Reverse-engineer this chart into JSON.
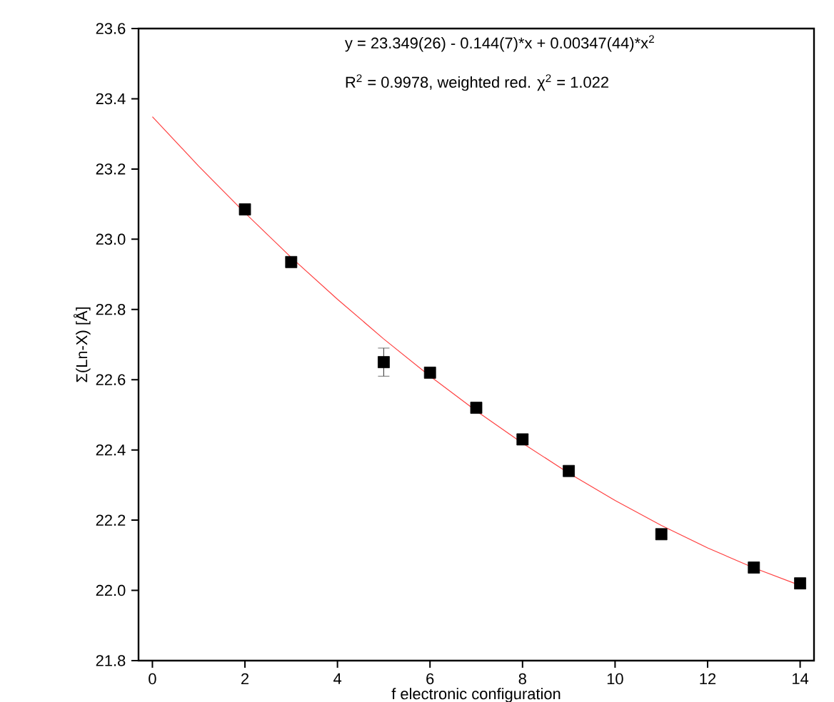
{
  "chart_data": {
    "type": "scatter",
    "xlabel": "f electronic configuration",
    "ylabel": "Σ(Ln-X) [Å]",
    "annotations": [
      "y = 23.349(26) - 0.144(7)*x + 0.00347(44)*x$^{2}$",
      "R$^{2}$ = 0.9978, weighted red. χ$^{2}$ = 1.022"
    ],
    "xlim": [
      -0.3,
      14.3
    ],
    "ylim": [
      21.8,
      23.6
    ],
    "xticks": [
      0,
      2,
      4,
      6,
      8,
      10,
      12,
      14
    ],
    "yticks": [
      {
        "value": 21.8,
        "label": "21.8"
      },
      {
        "value": 22.0,
        "label": "22.0"
      },
      {
        "value": 22.2,
        "label": "22.2"
      },
      {
        "value": 22.4,
        "label": "22.4"
      },
      {
        "value": 22.6,
        "label": "22.6"
      },
      {
        "value": 22.8,
        "label": "22.8"
      },
      {
        "value": 23.0,
        "label": "23.0"
      },
      {
        "value": 23.2,
        "label": "23.2"
      },
      {
        "value": 23.4,
        "label": "23.4"
      },
      {
        "value": 23.6,
        "label": "23.6"
      }
    ],
    "series": [
      {
        "type": "line",
        "color": "#ff4040",
        "marker": "none",
        "line_style": "solid",
        "x": [
          0,
          1,
          2,
          3,
          4,
          5,
          6,
          7,
          8,
          9,
          10,
          11,
          12,
          13,
          14
        ],
        "values": [
          23.349,
          23.208,
          23.075,
          22.948,
          22.829,
          22.716,
          22.61,
          22.511,
          22.419,
          22.334,
          22.256,
          22.185,
          22.121,
          22.064,
          22.014
        ]
      },
      {
        "color": "#000000",
        "marker": "square",
        "x": [
          2,
          3,
          5,
          6,
          7,
          8,
          9,
          11,
          13,
          14
        ],
        "values": [
          23.085,
          22.935,
          22.65,
          22.62,
          22.52,
          22.43,
          22.34,
          22.16,
          22.065,
          22.02
        ],
        "errors": [
          0.015,
          0.01,
          0.04,
          0.01,
          0.01,
          0.015,
          0.01,
          0.01,
          0.012,
          0.015
        ]
      }
    ]
  }
}
